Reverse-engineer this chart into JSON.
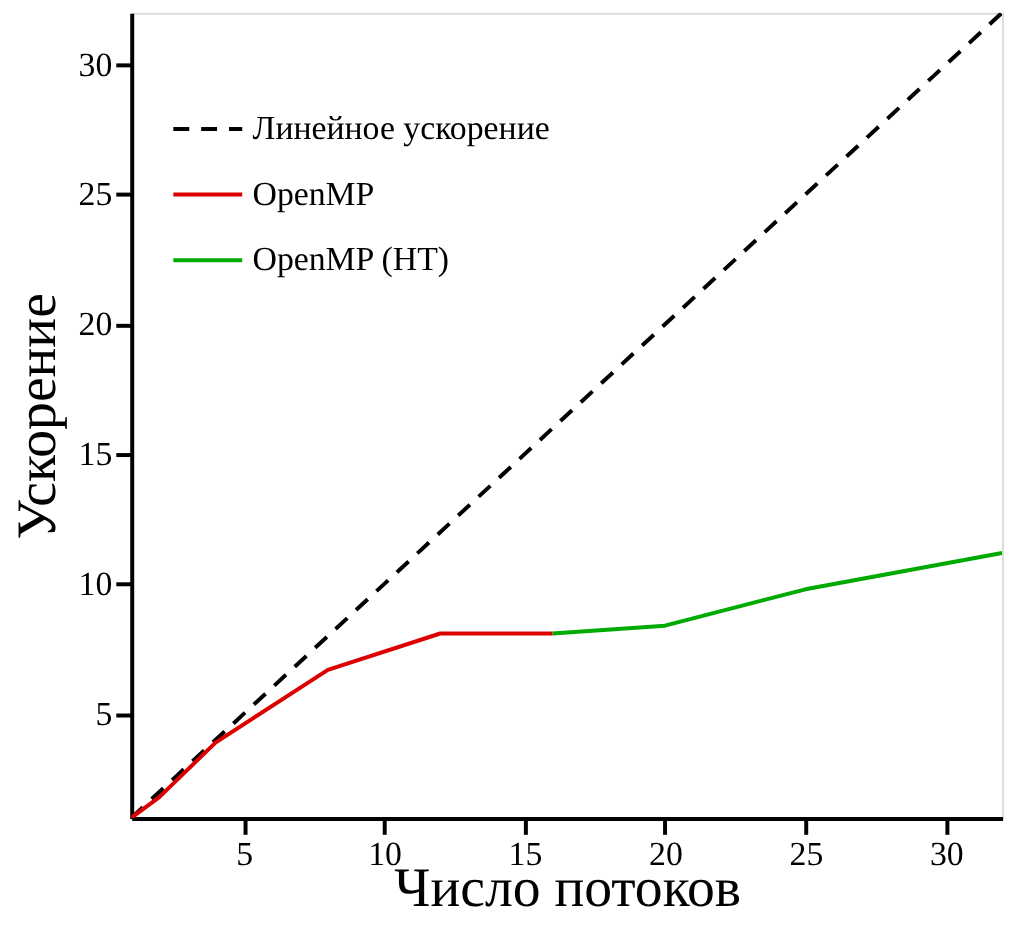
{
  "chart_data": {
    "type": "line",
    "xlabel": "Число потоков",
    "ylabel": "Ускорение",
    "xlim": [
      1,
      32
    ],
    "ylim": [
      1,
      32
    ],
    "xticks": [
      5,
      10,
      15,
      20,
      25,
      30
    ],
    "yticks": [
      5,
      10,
      15,
      20,
      25,
      30
    ],
    "grid": false,
    "legend": "top left",
    "marker": "none",
    "series": [
      {
        "name": "Линейное ускорение",
        "color": "#000000",
        "line_style": "dashed",
        "x": [
          1,
          32
        ],
        "values": [
          1,
          32
        ]
      },
      {
        "name": "OpenMP",
        "color": "#dd0000",
        "line_style": "solid",
        "x": [
          1,
          2,
          4,
          8,
          12,
          16
        ],
        "values": [
          1,
          1.8,
          3.9,
          6.7,
          8.1,
          8.1
        ]
      },
      {
        "name": "OpenMP (HT)",
        "color": "#00aa00",
        "line_style": "solid",
        "x": [
          16,
          20,
          25,
          32
        ],
        "values": [
          8.1,
          8.4,
          9.8,
          11.2
        ]
      }
    ]
  }
}
